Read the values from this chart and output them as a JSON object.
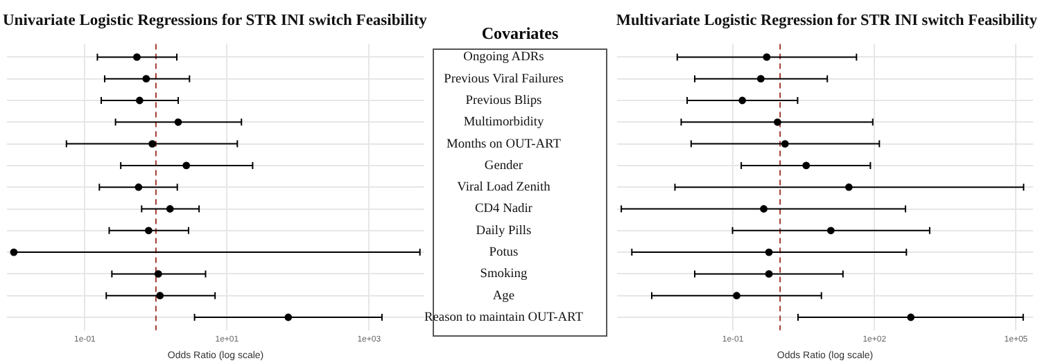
{
  "chart_data": [
    {
      "type": "scatter",
      "orientation": "horizontal",
      "title": "Univariate Logistic Regressions for STR INI switch Feasibility",
      "xlabel": "Odds Ratio (log scale)",
      "log": "x",
      "grid": true,
      "marker": "circle",
      "legend": false,
      "categories": [
        "Ongoing ADRs",
        "Previous Viral Failures",
        "Previous Blips",
        "Multimorbidity",
        "Months on OUT-ART",
        "Gender",
        "Viral Load Zenith",
        "CD4 Nadir",
        "Daily Pills",
        "Potus",
        "Smoking",
        "Age",
        "Reason to maintain OUT-ART"
      ],
      "series": [
        {
          "color": "#000000",
          "values": [
            0.54,
            0.73,
            0.59,
            2.06,
            0.89,
            2.68,
            0.57,
            1.58,
            0.79,
            0.01,
            1.08,
            1.14,
            73
          ],
          "errors": [
            [
              0.15,
              1.97
            ],
            [
              0.19,
              2.97
            ],
            [
              0.17,
              2.06
            ],
            [
              0.27,
              16
            ],
            [
              0.055,
              14
            ],
            [
              0.32,
              23
            ],
            [
              0.16,
              2.0
            ],
            [
              0.63,
              4.05
            ],
            [
              0.22,
              2.88
            ],
            [
              0.01,
              5200
            ],
            [
              0.24,
              5.0
            ],
            [
              0.2,
              6.8
            ],
            [
              3.5,
              1520
            ]
          ]
        }
      ],
      "xlim": [
        0.008,
        6000
      ],
      "xticks": [
        {
          "value": 0.1,
          "label": "1e-01"
        },
        {
          "value": 10,
          "label": "1e+01"
        },
        {
          "value": 1000,
          "label": "1e+03"
        }
      ],
      "ref_lines": [
        {
          "axis": "x",
          "value": 1,
          "color": "#a0382e",
          "line_style": "dashed"
        }
      ]
    },
    {
      "type": "other",
      "title": "Covariates"
    },
    {
      "type": "scatter",
      "orientation": "horizontal",
      "title": "Multivariate Logistic Regression for STR INI switch Feasibility",
      "xlabel": "Odds Ratio (log scale)",
      "log": "x",
      "tick_labels": "x",
      "grid": true,
      "marker": "circle",
      "legend": false,
      "categories": [
        null,
        null,
        null,
        null,
        null,
        null,
        null,
        null,
        null,
        null,
        null,
        null,
        null
      ],
      "series": [
        {
          "color": "#000000",
          "values": [
            0.52,
            0.39,
            0.158,
            0.88,
            1.27,
            3.57,
            28.7,
            0.45,
            11.9,
            0.58,
            0.58,
            0.12,
            590
          ],
          "errors": [
            [
              0.0066,
              41.6
            ],
            [
              0.0155,
              10
            ],
            [
              0.0107,
              2.35
            ],
            [
              0.008,
              92
            ],
            [
              0.013,
              127
            ],
            [
              0.15,
              82
            ],
            [
              0.0059,
              145000
            ],
            [
              0.00043,
              454
            ],
            [
              0.098,
              1480
            ],
            [
              0.00072,
              475
            ],
            [
              0.0155,
              21.5
            ],
            [
              0.0019,
              7.5
            ],
            [
              2.4,
              142000
            ]
          ]
        }
      ],
      "xlim": [
        0.00035,
        230000
      ],
      "xticks": [
        {
          "value": 0.1,
          "label": "1e-01"
        },
        {
          "value": 100,
          "label": "1e+02"
        },
        {
          "value": 100000,
          "label": "1e+05"
        }
      ],
      "ref_lines": [
        {
          "axis": "x",
          "value": 1,
          "color": "#a0382e",
          "line_style": "dashed"
        }
      ]
    }
  ]
}
